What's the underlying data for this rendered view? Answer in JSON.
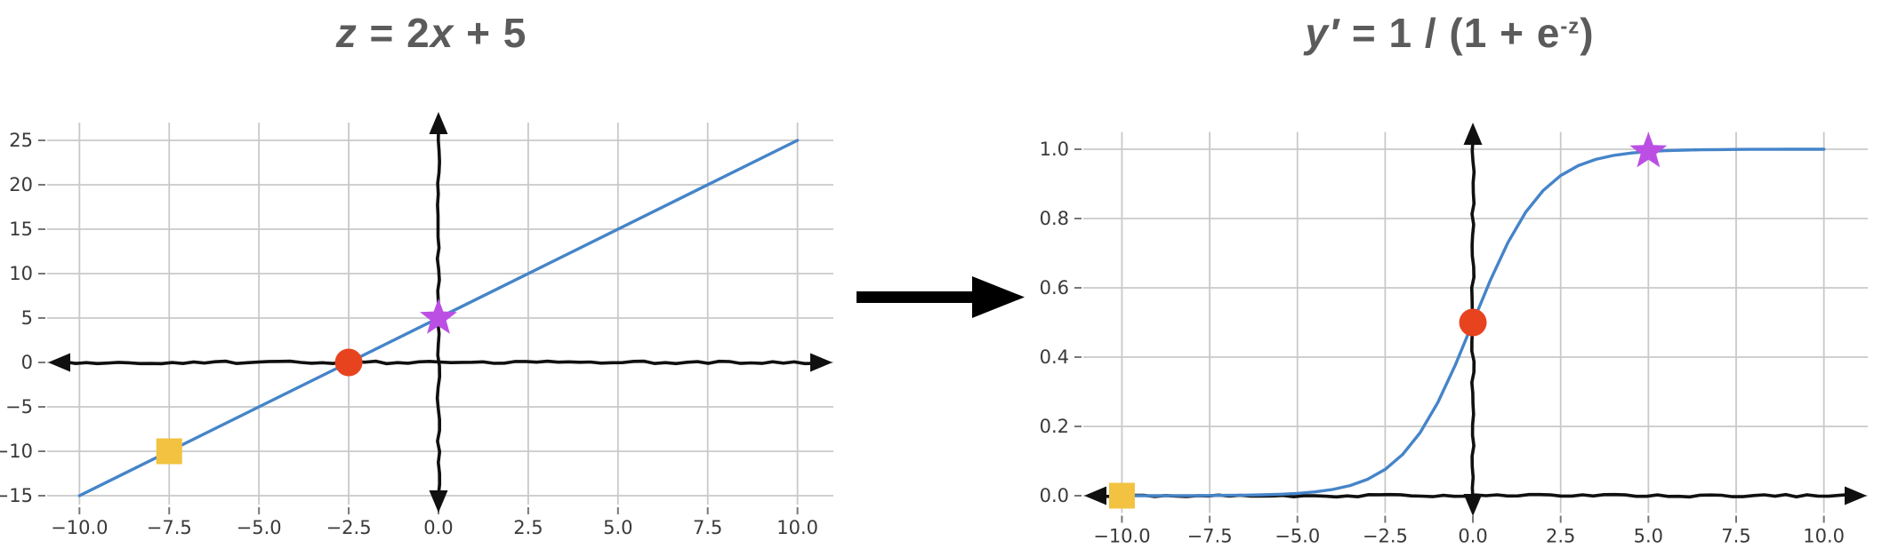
{
  "figure": {
    "background": "#ffffff",
    "description": "Linear pre-activation mapped through a sigmoid activation"
  },
  "transform_arrow": {
    "icon": "right-arrow-icon",
    "color": "#000000"
  },
  "chart_data": [
    {
      "id": "linear",
      "type": "line",
      "title_plain": "z = 2x + 5",
      "title_segments": [
        {
          "text": "z",
          "italic": true
        },
        {
          "text": " = 2",
          "italic": false
        },
        {
          "text": "x",
          "italic": true
        },
        {
          "text": " + 5",
          "italic": false
        }
      ],
      "xlabel": "",
      "ylabel": "",
      "xlim": [
        -10.9,
        11.0
      ],
      "ylim": [
        -16,
        27
      ],
      "grid": true,
      "grid_color": "#c9c9c9",
      "axis_color": "#101010",
      "tick_color": "#3a3a3a",
      "tick_mark_color": "#777777",
      "title_color": "#5b5b5b",
      "axes_style": "hand-drawn double-headed arrows through origin",
      "origin_axes": {
        "x_axis_at_y": 0,
        "y_axis_at_x": 0
      },
      "xticks": {
        "values": [
          -10,
          -7.5,
          -5,
          -2.5,
          0,
          2.5,
          5,
          7.5,
          10
        ],
        "labels": [
          "−10.0",
          "−7.5",
          "−5.0",
          "−2.5",
          "0.0",
          "2.5",
          "5.0",
          "7.5",
          "10.0"
        ]
      },
      "yticks": {
        "values": [
          -15,
          -10,
          -5,
          0,
          5,
          10,
          15,
          20,
          25
        ],
        "labels": [
          "−15",
          "−10",
          "−5",
          "0",
          "5",
          "10",
          "15",
          "20",
          "25"
        ]
      },
      "series": [
        {
          "name": "z = 2x + 5",
          "color": "#4584c9",
          "x": [
            -10,
            10
          ],
          "y": [
            -15,
            25
          ]
        }
      ],
      "points": [
        {
          "marker": "square",
          "color": "#f2c240",
          "x": -7.5,
          "y": -10
        },
        {
          "marker": "circle",
          "color": "#e8431f",
          "x": -2.5,
          "y": 0
        },
        {
          "marker": "star",
          "color": "#bb4fe4",
          "x": 0,
          "y": 5
        }
      ]
    },
    {
      "id": "sigmoid",
      "type": "line",
      "title_plain": "y′ = 1 / (1 + e⁻ᶻ)",
      "title_segments": [
        {
          "text": "y′",
          "italic": true
        },
        {
          "text": " = 1 / (1 + e",
          "italic": false
        },
        {
          "text": "-z",
          "sup": true
        },
        {
          "text": ")",
          "italic": false
        }
      ],
      "xlabel": "",
      "ylabel": "",
      "xlim": [
        -11.1,
        11.25
      ],
      "ylim": [
        -0.05,
        1.05
      ],
      "grid": true,
      "grid_color": "#c9c9c9",
      "axis_color": "#101010",
      "tick_color": "#3a3a3a",
      "tick_mark_color": "#777777",
      "title_color": "#5b5b5b",
      "axes_style": "hand-drawn double-headed arrows through origin",
      "origin_axes": {
        "x_axis_at_y": 0,
        "y_axis_at_x": 0
      },
      "xticks": {
        "values": [
          -10,
          -7.5,
          -5,
          -2.5,
          0,
          2.5,
          5,
          7.5,
          10
        ],
        "labels": [
          "−10.0",
          "−7.5",
          "−5.0",
          "−2.5",
          "0.0",
          "2.5",
          "5.0",
          "7.5",
          "10.0"
        ]
      },
      "yticks": {
        "values": [
          0,
          0.2,
          0.4,
          0.6,
          0.8,
          1.0
        ],
        "labels": [
          "0.0",
          "0.2",
          "0.4",
          "0.6",
          "0.8",
          "1.0"
        ]
      },
      "series": [
        {
          "name": "y′ = 1 / (1 + e^−z)",
          "color": "#4584c9",
          "x": [
            -10,
            -9.5,
            -9,
            -8.5,
            -8,
            -7.5,
            -7,
            -6.5,
            -6,
            -5.5,
            -5,
            -4.5,
            -4,
            -3.5,
            -3,
            -2.5,
            -2,
            -1.5,
            -1,
            -0.5,
            0,
            0.5,
            1,
            1.5,
            2,
            2.5,
            3,
            3.5,
            4,
            4.5,
            5,
            5.5,
            6,
            6.5,
            7,
            7.5,
            8,
            8.5,
            9,
            9.5,
            10
          ],
          "y": [
            5e-05,
            7e-05,
            0.00012,
            0.0002,
            0.00034,
            0.00055,
            0.00091,
            0.0015,
            0.00247,
            0.00407,
            0.00669,
            0.01099,
            0.01799,
            0.02931,
            0.04743,
            0.07586,
            0.1192,
            0.18243,
            0.26894,
            0.37754,
            0.5,
            0.62246,
            0.73106,
            0.81757,
            0.8808,
            0.92414,
            0.95257,
            0.97069,
            0.98201,
            0.98901,
            0.99331,
            0.99593,
            0.99753,
            0.9985,
            0.99909,
            0.99945,
            0.99966,
            0.9998,
            0.99988,
            0.99993,
            0.99995
          ]
        }
      ],
      "points": [
        {
          "marker": "square",
          "color": "#f2c240",
          "x": -10,
          "y": 5e-05
        },
        {
          "marker": "circle",
          "color": "#e8431f",
          "x": 0,
          "y": 0.5
        },
        {
          "marker": "star",
          "color": "#bb4fe4",
          "x": 5,
          "y": 0.99331
        }
      ]
    }
  ]
}
